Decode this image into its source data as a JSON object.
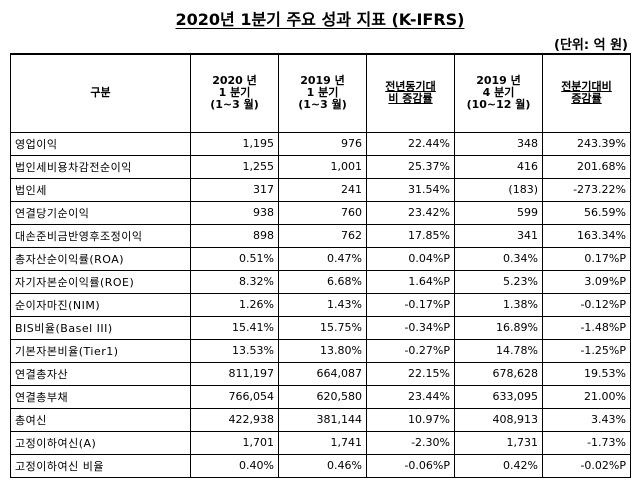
{
  "title": "2020년 1분기 주요 성과 지표 (K-IFRS)",
  "unit": "(단위: 억 원)",
  "headers": [
    "구분",
    "2020 년\n1 분기\n(1~3 월)",
    "2019 년\n1 분기\n(1~3 월)",
    "전년동기대\n비 증감률",
    "2019 년\n4 분기\n(10~12 월)",
    "전분기대비\n증감률"
  ],
  "rows": [
    [
      "영업이익",
      "1,195",
      "976",
      "22.44%",
      "348",
      "243.39%"
    ],
    [
      "법인세비용차감전순이익",
      "1,255",
      "1,001",
      "25.37%",
      "416",
      "201.68%"
    ],
    [
      "법인세",
      "317",
      "241",
      "31.54%",
      "(183)",
      "-273.22%"
    ],
    [
      "연결당기순이익",
      "938",
      "760",
      "23.42%",
      "599",
      "56.59%"
    ],
    [
      "대손준비금반영후조정이익",
      "898",
      "762",
      "17.85%",
      "341",
      "163.34%"
    ],
    [
      "총자산순이익률(ROA)",
      "0.51%",
      "0.47%",
      "0.04%P",
      "0.34%",
      "0.17%P"
    ],
    [
      "자기자본순이익률(ROE)",
      "8.32%",
      "6.68%",
      "1.64%P",
      "5.23%",
      "3.09%P"
    ],
    [
      "순이자마진(NIM)",
      "1.26%",
      "1.43%",
      "-0.17%P",
      "1.38%",
      "-0.12%P"
    ],
    [
      "BIS비율(Basel III)",
      "15.41%",
      "15.75%",
      "-0.34%P",
      "16.89%",
      "-1.48%P"
    ],
    [
      "기본자본비율(Tier1)",
      "13.53%",
      "13.80%",
      "-0.27%P",
      "14.78%",
      "-1.25%P"
    ],
    [
      "연결총자산",
      "811,197",
      "664,087",
      "22.15%",
      "678,628",
      "19.53%"
    ],
    [
      "연결총부채",
      "766,054",
      "620,580",
      "23.44%",
      "633,095",
      "21.00%"
    ],
    [
      "총여신",
      "422,938",
      "381,144",
      "10.97%",
      "408,913",
      "3.43%"
    ],
    [
      "고정이하여신(A)",
      "1,701",
      "1,741",
      "-2.30%",
      "1,731",
      "-1.73%"
    ],
    [
      "고정이하여신 비율",
      "0.40%",
      "0.46%",
      "-0.06%P",
      "0.42%",
      "-0.02%P"
    ]
  ]
}
